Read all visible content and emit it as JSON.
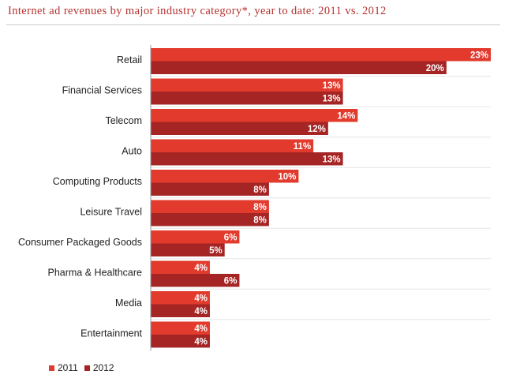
{
  "chart_data": {
    "type": "bar",
    "orientation": "horizontal",
    "title": "Internet ad revenues by major industry category*, year to date: 2011 vs. 2012",
    "categories": [
      "Retail",
      "Financial Services",
      "Telecom",
      "Auto",
      "Computing Products",
      "Leisure Travel",
      "Consumer Packaged Goods",
      "Pharma & Healthcare",
      "Media",
      "Entertainment"
    ],
    "series": [
      {
        "name": "2011",
        "values": [
          23,
          13,
          14,
          11,
          10,
          8,
          6,
          4,
          4,
          4
        ],
        "labels": [
          "23%",
          "13%",
          "14%",
          "11%",
          "10%",
          "8%",
          "6%",
          "4%",
          "4%",
          "4%"
        ],
        "color": "#e23b2e"
      },
      {
        "name": "2012",
        "values": [
          20,
          13,
          12,
          13,
          8,
          8,
          5,
          6,
          4,
          4
        ],
        "labels": [
          "20%",
          "13%",
          "12%",
          "13%",
          "8%",
          "8%",
          "5%",
          "6%",
          "4%",
          "4%"
        ],
        "color": "#a52424"
      }
    ],
    "xlim": [
      0,
      23
    ],
    "grid": false,
    "legend_position": "bottom-left"
  }
}
